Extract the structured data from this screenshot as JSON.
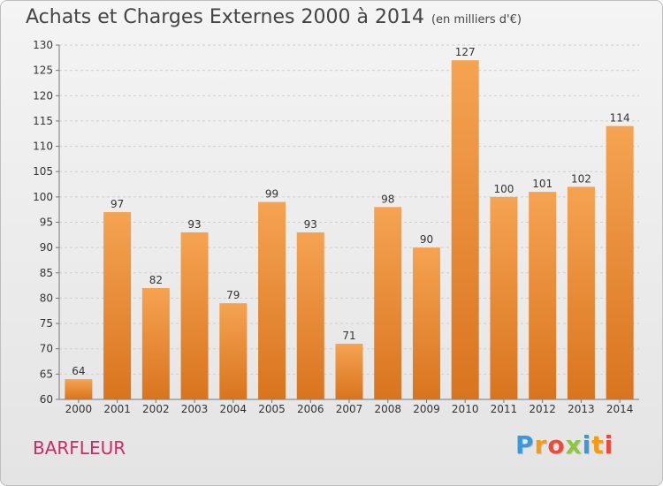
{
  "header": {
    "title": "Achats et Charges Externes 2000 à 2014",
    "subtitle": "(en milliers d'€)"
  },
  "footer": {
    "commune": "BARFLEUR",
    "logo_letters": [
      "P",
      "r",
      "o",
      "x",
      "i",
      "t",
      "i"
    ],
    "logo_colors": [
      "#3a9ad9",
      "#f39c12",
      "#e74c3c",
      "#8dc63f",
      "#3a9ad9",
      "#f39c12",
      "#e74c3c"
    ]
  },
  "colors": {
    "bar_top": "#f5a352",
    "bar_bottom": "#d9741e",
    "commune": "#cc2a68"
  },
  "chart_data": {
    "type": "bar",
    "title": "Achats et Charges Externes 2000 à 2014",
    "subtitle": "(en milliers d'€)",
    "categories": [
      "2000",
      "2001",
      "2002",
      "2003",
      "2004",
      "2005",
      "2006",
      "2007",
      "2008",
      "2009",
      "2010",
      "2011",
      "2012",
      "2013",
      "2014"
    ],
    "values": [
      64,
      97,
      82,
      93,
      79,
      99,
      93,
      71,
      98,
      90,
      127,
      100,
      101,
      102,
      114
    ],
    "ylim": [
      60,
      130
    ],
    "yticks": [
      60,
      65,
      70,
      75,
      80,
      85,
      90,
      95,
      100,
      105,
      110,
      115,
      120,
      125,
      130
    ],
    "grid": true,
    "data_labels": true
  }
}
